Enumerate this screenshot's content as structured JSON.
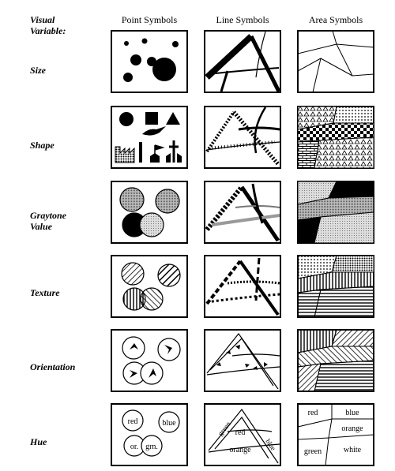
{
  "header": {
    "visual_variable_label_line1": "Visual",
    "visual_variable_label_line2": "Variable:"
  },
  "columns": [
    "Point Symbols",
    "Line Symbols",
    "Area Symbols"
  ],
  "rows": {
    "size": "Size",
    "shape": "Shape",
    "value_line1": "Graytone",
    "value_line2": "Value",
    "texture": "Texture",
    "orientation": "Orientation",
    "hue": "Hue"
  },
  "hue_point_labels": {
    "red": "red",
    "blue": "blue",
    "orange": "or.",
    "green": "grn."
  },
  "hue_line_labels": {
    "green": "green",
    "red": "red",
    "blue": "blue",
    "orange": "orange"
  },
  "hue_area_labels": {
    "red": "red",
    "blue": "blue",
    "orange": "orange",
    "green": "green",
    "white": "white"
  }
}
